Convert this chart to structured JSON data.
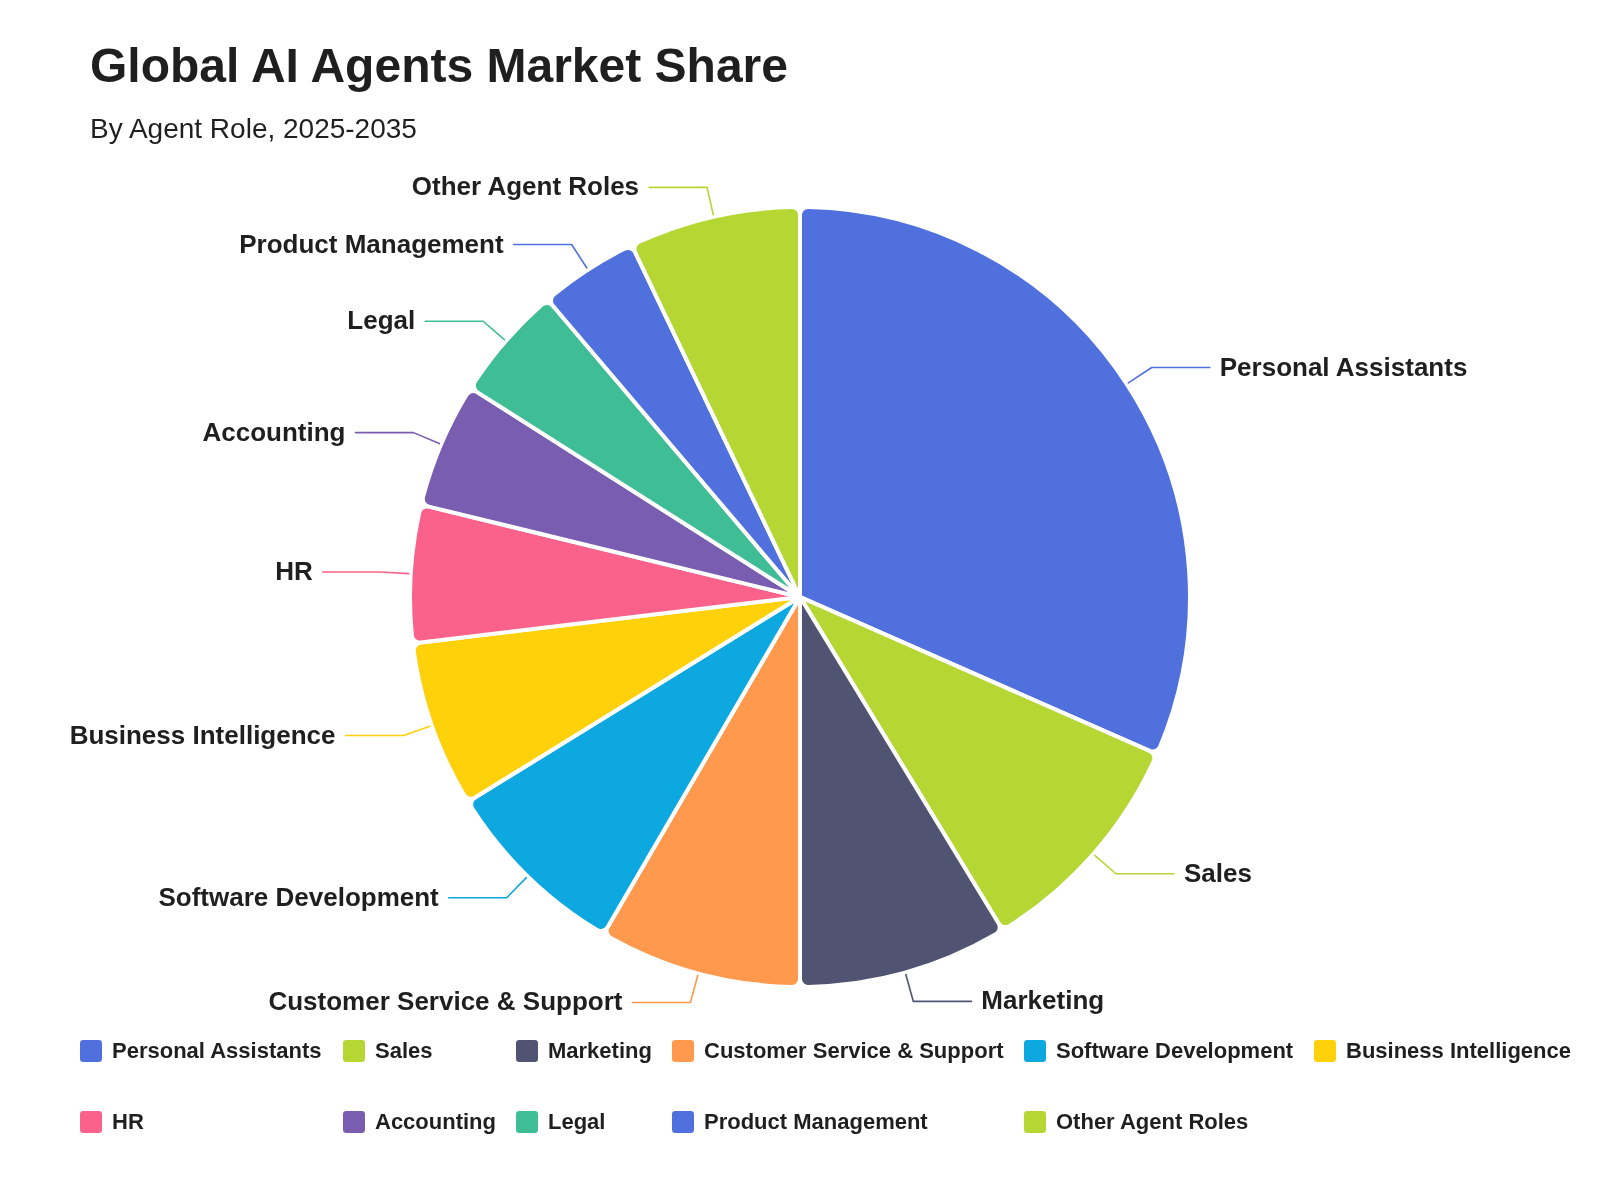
{
  "chart_data": {
    "type": "pie",
    "title": "Global AI Agents Market Share",
    "subtitle": "By Agent Role, 2025-2035",
    "categories": [
      "Personal Assistants",
      "Sales",
      "Marketing",
      "Customer Service & Support",
      "Software Development",
      "Business Intelligence",
      "HR",
      "Accounting",
      "Legal",
      "Product Management",
      "Other Agent Roles"
    ],
    "values": [
      31.6,
      9.7,
      8.7,
      8.4,
      7.8,
      6.9,
      5.7,
      5.2,
      4.8,
      4.1,
      7.1
    ],
    "colors": [
      "#5070dd",
      "#b6d634",
      "#505372",
      "#ff994d",
      "#0ca8df",
      "#ffd10a",
      "#fb628b",
      "#785db0",
      "#3fbe95",
      "#5070dd",
      "#b6d634"
    ],
    "legend": "bottom"
  }
}
